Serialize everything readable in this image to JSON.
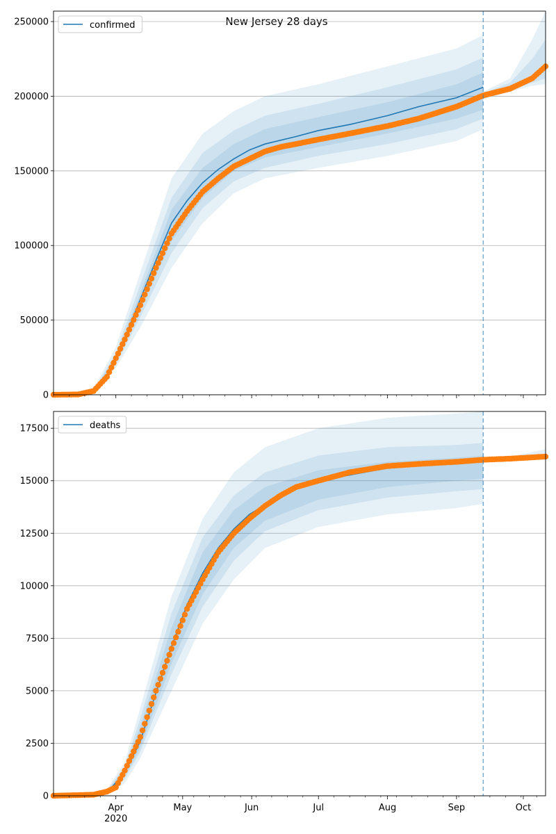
{
  "figure": {
    "title": "New Jersey 28 days"
  },
  "colors": {
    "model": "#1f77b4",
    "observed": "#ff7f0e",
    "band": "#1f77b4",
    "grid": "#b0b0b0",
    "cutoff": "#1f77b4"
  },
  "chart_data": [
    {
      "type": "line",
      "panel": "confirmed",
      "legend": [
        "confirmed"
      ],
      "legend_position": "top-left",
      "grid": "horizontal",
      "x_tick_labels": [
        "Apr",
        "May",
        "Jun",
        "Jul",
        "Aug",
        "Sep",
        "Oct"
      ],
      "x_tick_dates": [
        "2020-04-01",
        "2020-05-01",
        "2020-06-01",
        "2020-07-01",
        "2020-08-01",
        "2020-09-01",
        "2020-10-01"
      ],
      "x_year_label": "2020",
      "xlim": [
        "2020-03-04",
        "2020-10-11"
      ],
      "ylim": [
        0,
        257000
      ],
      "y_ticks": [
        0,
        50000,
        100000,
        150000,
        200000,
        250000
      ],
      "forecast_cutoff": "2020-09-13",
      "observed_anchors": [
        [
          "2020-03-04",
          0
        ],
        [
          "2020-03-15",
          200
        ],
        [
          "2020-03-22",
          2500
        ],
        [
          "2020-03-28",
          12000
        ],
        [
          "2020-04-05",
          37000
        ],
        [
          "2020-04-12",
          60000
        ],
        [
          "2020-04-19",
          85000
        ],
        [
          "2020-04-26",
          108000
        ],
        [
          "2020-05-03",
          123000
        ],
        [
          "2020-05-10",
          136000
        ],
        [
          "2020-05-17",
          145000
        ],
        [
          "2020-05-24",
          153000
        ],
        [
          "2020-05-31",
          158000
        ],
        [
          "2020-06-07",
          163000
        ],
        [
          "2020-06-14",
          166000
        ],
        [
          "2020-06-21",
          168000
        ],
        [
          "2020-07-01",
          171000
        ],
        [
          "2020-07-15",
          175000
        ],
        [
          "2020-08-01",
          180000
        ],
        [
          "2020-08-15",
          185000
        ],
        [
          "2020-09-01",
          193000
        ],
        [
          "2020-09-13",
          200500
        ],
        [
          "2020-09-25",
          205000
        ],
        [
          "2020-10-05",
          212000
        ],
        [
          "2020-10-11",
          220000
        ]
      ],
      "model_line": [
        [
          "2020-03-22",
          2000
        ],
        [
          "2020-03-28",
          12000
        ],
        [
          "2020-04-05",
          38000
        ],
        [
          "2020-04-12",
          64000
        ],
        [
          "2020-04-19",
          90000
        ],
        [
          "2020-04-26",
          115000
        ],
        [
          "2020-05-03",
          130000
        ],
        [
          "2020-05-10",
          142000
        ],
        [
          "2020-05-17",
          151000
        ],
        [
          "2020-05-24",
          158000
        ],
        [
          "2020-05-31",
          164000
        ],
        [
          "2020-06-07",
          168000
        ],
        [
          "2020-06-21",
          173000
        ],
        [
          "2020-07-01",
          177000
        ],
        [
          "2020-07-15",
          181000
        ],
        [
          "2020-08-01",
          187000
        ],
        [
          "2020-08-15",
          193000
        ],
        [
          "2020-09-01",
          199000
        ],
        [
          "2020-09-13",
          206000
        ]
      ],
      "bands": [
        {
          "lower": [
            [
              "2020-03-22",
              1000
            ],
            [
              "2020-04-01",
              18000
            ],
            [
              "2020-04-12",
              45000
            ],
            [
              "2020-04-26",
              85000
            ],
            [
              "2020-05-10",
              115000
            ],
            [
              "2020-05-24",
              135000
            ],
            [
              "2020-06-07",
              145000
            ],
            [
              "2020-07-01",
              152000
            ],
            [
              "2020-08-01",
              160000
            ],
            [
              "2020-09-01",
              170000
            ],
            [
              "2020-09-13",
              178000
            ]
          ],
          "upper": [
            [
              "2020-03-22",
              4000
            ],
            [
              "2020-04-01",
              32000
            ],
            [
              "2020-04-12",
              82000
            ],
            [
              "2020-04-26",
              145000
            ],
            [
              "2020-05-10",
              175000
            ],
            [
              "2020-05-24",
              190000
            ],
            [
              "2020-06-07",
              200000
            ],
            [
              "2020-07-01",
              208000
            ],
            [
              "2020-08-01",
              220000
            ],
            [
              "2020-09-01",
              232000
            ],
            [
              "2020-09-13",
              241000
            ]
          ]
        },
        {
          "lower": [
            [
              "2020-03-22",
              1500
            ],
            [
              "2020-04-01",
              20000
            ],
            [
              "2020-04-12",
              52000
            ],
            [
              "2020-04-26",
              95000
            ],
            [
              "2020-05-10",
              125000
            ],
            [
              "2020-05-24",
              143000
            ],
            [
              "2020-06-07",
              152000
            ],
            [
              "2020-07-01",
              160000
            ],
            [
              "2020-08-01",
              168000
            ],
            [
              "2020-09-01",
              178000
            ],
            [
              "2020-09-13",
              185000
            ]
          ],
          "upper": [
            [
              "2020-03-22",
              3000
            ],
            [
              "2020-04-01",
              28000
            ],
            [
              "2020-04-12",
              74000
            ],
            [
              "2020-04-26",
              132000
            ],
            [
              "2020-05-10",
              162000
            ],
            [
              "2020-05-24",
              177000
            ],
            [
              "2020-06-07",
              187000
            ],
            [
              "2020-07-01",
              195000
            ],
            [
              "2020-08-01",
              206000
            ],
            [
              "2020-09-01",
              218000
            ],
            [
              "2020-09-13",
              226000
            ]
          ]
        },
        {
          "lower": [
            [
              "2020-03-22",
              1800
            ],
            [
              "2020-04-01",
              22000
            ],
            [
              "2020-04-12",
              57000
            ],
            [
              "2020-04-26",
              103000
            ],
            [
              "2020-05-10",
              132000
            ],
            [
              "2020-05-24",
              150000
            ],
            [
              "2020-06-07",
              159000
            ],
            [
              "2020-07-01",
              166000
            ],
            [
              "2020-08-01",
              175000
            ],
            [
              "2020-09-01",
              185000
            ],
            [
              "2020-09-13",
              191000
            ]
          ],
          "upper": [
            [
              "2020-03-22",
              2500
            ],
            [
              "2020-04-01",
              26000
            ],
            [
              "2020-04-12",
              68000
            ],
            [
              "2020-04-26",
              124000
            ],
            [
              "2020-05-10",
              152000
            ],
            [
              "2020-05-24",
              168000
            ],
            [
              "2020-06-07",
              178000
            ],
            [
              "2020-07-01",
              186000
            ],
            [
              "2020-08-01",
              196000
            ],
            [
              "2020-09-01",
              208000
            ],
            [
              "2020-09-13",
              216000
            ]
          ]
        },
        {
          "lower": [
            [
              "2020-09-13",
              198000
            ],
            [
              "2020-09-25",
              203000
            ],
            [
              "2020-10-05",
              207000
            ],
            [
              "2020-10-11",
              208000
            ]
          ],
          "upper": [
            [
              "2020-09-13",
              203000
            ],
            [
              "2020-09-25",
              212000
            ],
            [
              "2020-10-05",
              238000
            ],
            [
              "2020-10-11",
              257000
            ]
          ]
        },
        {
          "lower": [
            [
              "2020-09-13",
              199000
            ],
            [
              "2020-09-25",
              204000
            ],
            [
              "2020-10-05",
              209000
            ],
            [
              "2020-10-11",
              212000
            ]
          ],
          "upper": [
            [
              "2020-09-13",
              202000
            ],
            [
              "2020-09-25",
              209000
            ],
            [
              "2020-10-05",
              225000
            ],
            [
              "2020-10-11",
              238000
            ]
          ]
        }
      ]
    },
    {
      "type": "line",
      "panel": "deaths",
      "legend": [
        "deaths"
      ],
      "legend_position": "top-left",
      "grid": "horizontal",
      "x_tick_labels": [
        "Apr",
        "May",
        "Jun",
        "Jul",
        "Aug",
        "Sep",
        "Oct"
      ],
      "x_tick_dates": [
        "2020-04-01",
        "2020-05-01",
        "2020-06-01",
        "2020-07-01",
        "2020-08-01",
        "2020-09-01",
        "2020-10-01"
      ],
      "x_year_label": "2020",
      "xlim": [
        "2020-03-04",
        "2020-10-11"
      ],
      "ylim": [
        0,
        18300
      ],
      "y_ticks": [
        0,
        2500,
        5000,
        7500,
        10000,
        12500,
        15000,
        17500
      ],
      "forecast_cutoff": "2020-09-13",
      "observed_anchors": [
        [
          "2020-03-04",
          0
        ],
        [
          "2020-03-22",
          50
        ],
        [
          "2020-03-28",
          200
        ],
        [
          "2020-04-01",
          400
        ],
        [
          "2020-04-05",
          1200
        ],
        [
          "2020-04-12",
          2800
        ],
        [
          "2020-04-19",
          5000
        ],
        [
          "2020-04-26",
          7000
        ],
        [
          "2020-05-03",
          8900
        ],
        [
          "2020-05-10",
          10300
        ],
        [
          "2020-05-17",
          11600
        ],
        [
          "2020-05-24",
          12500
        ],
        [
          "2020-05-31",
          13200
        ],
        [
          "2020-06-07",
          13800
        ],
        [
          "2020-06-14",
          14300
        ],
        [
          "2020-06-21",
          14700
        ],
        [
          "2020-07-01",
          15000
        ],
        [
          "2020-07-15",
          15400
        ],
        [
          "2020-08-01",
          15700
        ],
        [
          "2020-08-15",
          15800
        ],
        [
          "2020-09-01",
          15900
        ],
        [
          "2020-09-13",
          16000
        ],
        [
          "2020-09-25",
          16050
        ],
        [
          "2020-10-11",
          16150
        ]
      ],
      "model_line": [
        [
          "2020-03-28",
          150
        ],
        [
          "2020-04-05",
          1100
        ],
        [
          "2020-04-12",
          2600
        ],
        [
          "2020-04-19",
          4900
        ],
        [
          "2020-04-26",
          7100
        ],
        [
          "2020-05-03",
          9100
        ],
        [
          "2020-05-10",
          10600
        ],
        [
          "2020-05-17",
          11800
        ],
        [
          "2020-05-24",
          12700
        ],
        [
          "2020-05-31",
          13400
        ],
        [
          "2020-06-14",
          14300
        ],
        [
          "2020-07-01",
          15000
        ],
        [
          "2020-08-01",
          15600
        ],
        [
          "2020-09-01",
          15900
        ],
        [
          "2020-09-13",
          16000
        ]
      ],
      "bands": [
        {
          "lower": [
            [
              "2020-03-28",
              50
            ],
            [
              "2020-04-05",
              600
            ],
            [
              "2020-04-12",
              1800
            ],
            [
              "2020-04-26",
              5000
            ],
            [
              "2020-05-10",
              8200
            ],
            [
              "2020-05-24",
              10300
            ],
            [
              "2020-06-07",
              11800
            ],
            [
              "2020-07-01",
              12800
            ],
            [
              "2020-08-01",
              13400
            ],
            [
              "2020-09-01",
              13700
            ],
            [
              "2020-09-13",
              13900
            ]
          ],
          "upper": [
            [
              "2020-03-28",
              300
            ],
            [
              "2020-04-05",
              1600
            ],
            [
              "2020-04-12",
              4200
            ],
            [
              "2020-04-26",
              9500
            ],
            [
              "2020-05-10",
              13200
            ],
            [
              "2020-05-24",
              15400
            ],
            [
              "2020-06-07",
              16600
            ],
            [
              "2020-07-01",
              17500
            ],
            [
              "2020-08-01",
              18000
            ],
            [
              "2020-09-01",
              18200
            ],
            [
              "2020-09-13",
              18300
            ]
          ]
        },
        {
          "lower": [
            [
              "2020-03-28",
              80
            ],
            [
              "2020-04-05",
              800
            ],
            [
              "2020-04-12",
              2100
            ],
            [
              "2020-04-26",
              5800
            ],
            [
              "2020-05-10",
              9000
            ],
            [
              "2020-05-24",
              11200
            ],
            [
              "2020-06-07",
              12600
            ],
            [
              "2020-07-01",
              13600
            ],
            [
              "2020-08-01",
              14200
            ],
            [
              "2020-09-01",
              14500
            ],
            [
              "2020-09-13",
              14600
            ]
          ],
          "upper": [
            [
              "2020-03-28",
              250
            ],
            [
              "2020-04-05",
              1400
            ],
            [
              "2020-04-12",
              3700
            ],
            [
              "2020-04-26",
              8700
            ],
            [
              "2020-05-10",
              12300
            ],
            [
              "2020-05-24",
              14300
            ],
            [
              "2020-06-07",
              15400
            ],
            [
              "2020-07-01",
              16200
            ],
            [
              "2020-08-01",
              16600
            ],
            [
              "2020-09-01",
              16700
            ],
            [
              "2020-09-13",
              16800
            ]
          ]
        },
        {
          "lower": [
            [
              "2020-03-28",
              100
            ],
            [
              "2020-04-05",
              900
            ],
            [
              "2020-04-12",
              2300
            ],
            [
              "2020-04-26",
              6300
            ],
            [
              "2020-05-10",
              9600
            ],
            [
              "2020-05-24",
              11800
            ],
            [
              "2020-06-07",
              13100
            ],
            [
              "2020-07-01",
              14100
            ],
            [
              "2020-08-01",
              14700
            ],
            [
              "2020-09-01",
              15000
            ],
            [
              "2020-09-13",
              15100
            ]
          ],
          "upper": [
            [
              "2020-03-28",
              200
            ],
            [
              "2020-04-05",
              1300
            ],
            [
              "2020-04-12",
              3300
            ],
            [
              "2020-04-26",
              8000
            ],
            [
              "2020-05-10",
              11600
            ],
            [
              "2020-05-24",
              13600
            ],
            [
              "2020-06-07",
              14700
            ],
            [
              "2020-07-01",
              15500
            ],
            [
              "2020-08-01",
              15900
            ],
            [
              "2020-09-01",
              16100
            ],
            [
              "2020-09-13",
              16200
            ]
          ]
        },
        {
          "lower": [
            [
              "2020-09-13",
              15950
            ],
            [
              "2020-10-11",
              16000
            ]
          ],
          "upper": [
            [
              "2020-09-13",
              16050
            ],
            [
              "2020-09-25",
              16150
            ],
            [
              "2020-10-11",
              16500
            ]
          ]
        }
      ]
    }
  ]
}
